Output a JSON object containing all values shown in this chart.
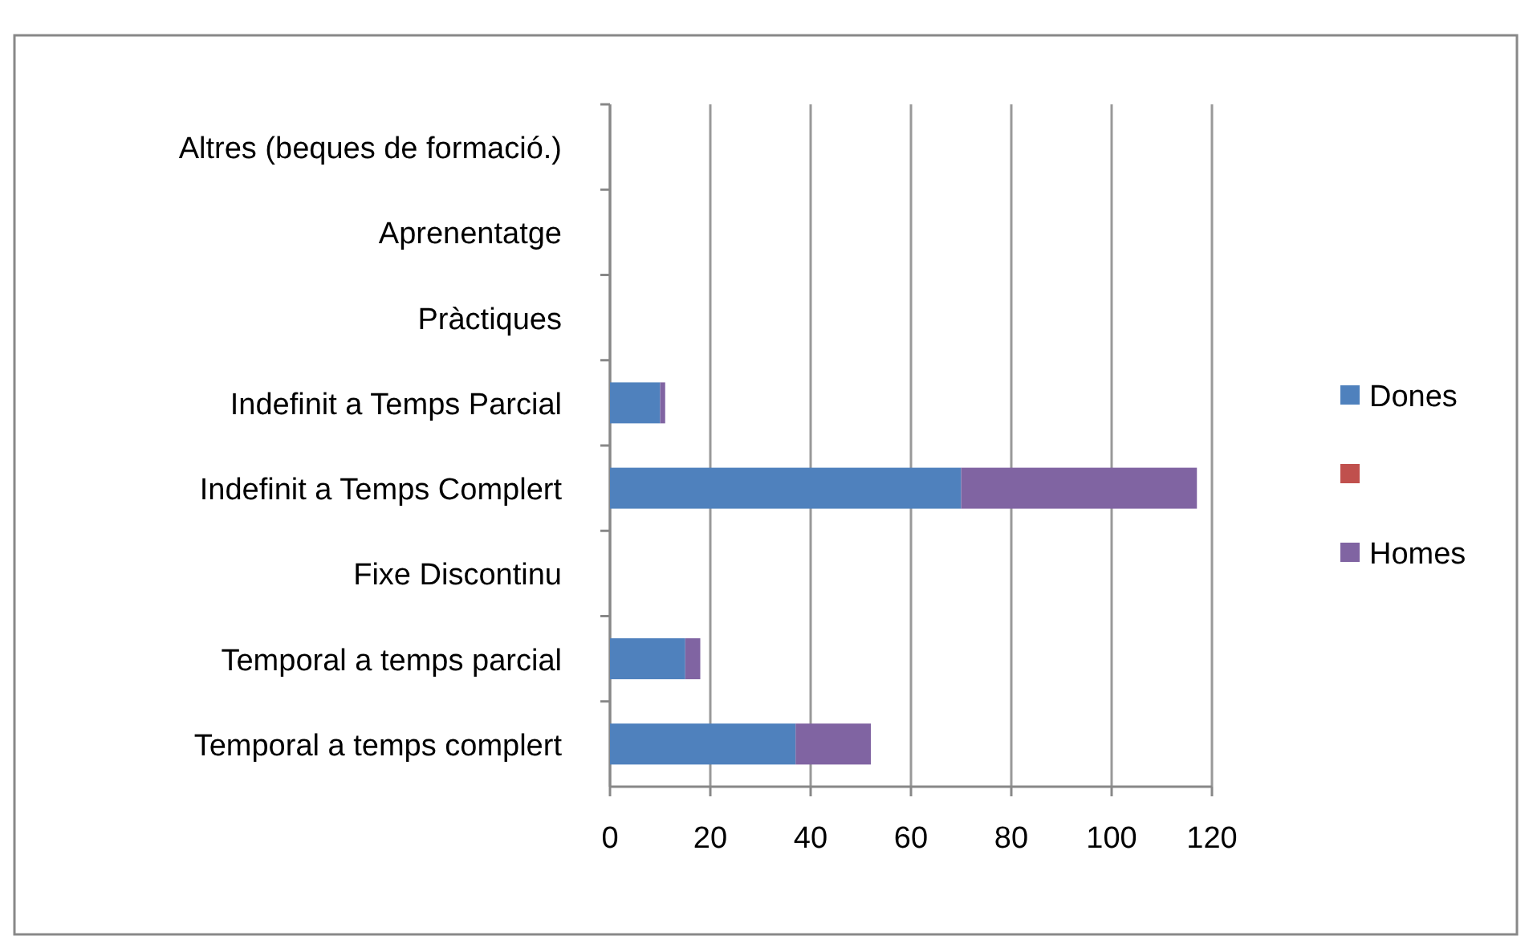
{
  "chart_data": {
    "type": "bar",
    "orientation": "horizontal",
    "stacked": true,
    "categories": [
      "Altres (beques de formació.)",
      "Aprenentatge",
      "Pràctiques",
      "Indefinit a Temps Parcial",
      "Indefinit a Temps Complert",
      "Fixe Discontinu",
      "Temporal a temps parcial",
      "Temporal a temps complert"
    ],
    "series": [
      {
        "name": "Dones",
        "color": "#4f81bd",
        "values": [
          null,
          null,
          null,
          10,
          70,
          null,
          15,
          37
        ]
      },
      {
        "color": "#c0504d",
        "values": [
          null,
          null,
          null,
          null,
          null,
          null,
          null,
          null
        ]
      },
      {
        "name": "Homes",
        "color": "#8064a2",
        "values": [
          null,
          null,
          null,
          1,
          47,
          null,
          3,
          15
        ]
      }
    ],
    "xlim": [
      0,
      120
    ],
    "xticks": [
      0,
      20,
      40,
      60,
      80,
      100,
      120
    ],
    "grid": "x",
    "legend": "right"
  }
}
